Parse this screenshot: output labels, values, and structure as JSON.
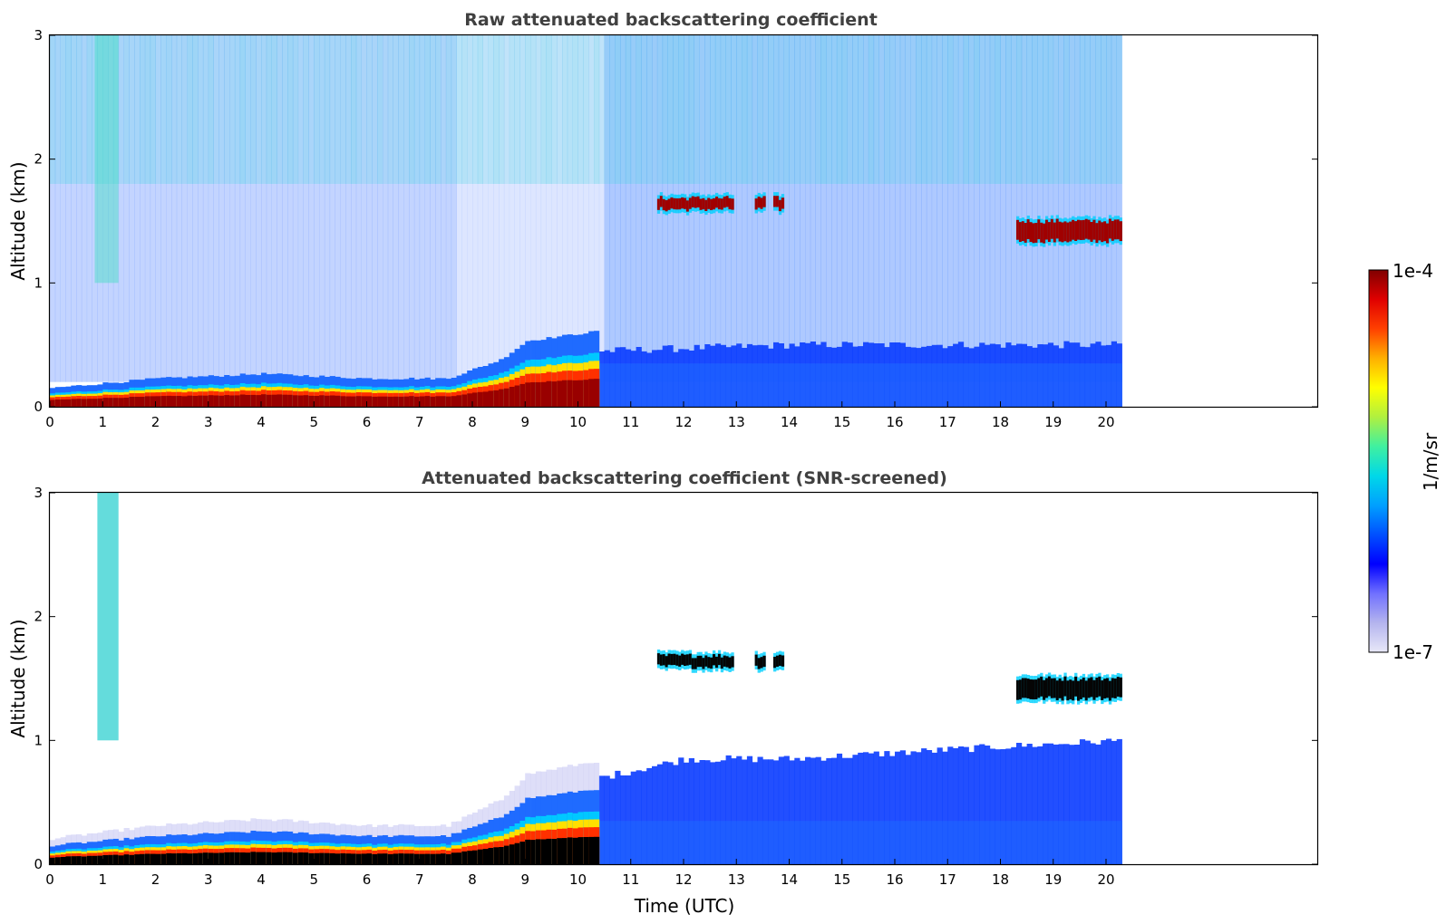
{
  "chart_data": [
    {
      "type": "heatmap",
      "title": "Raw attenuated backscattering coefficient",
      "xlabel": "",
      "ylabel": "Altitude (km)",
      "xlim": [
        0,
        24
      ],
      "ylim": [
        0,
        3
      ],
      "data_extent_x": [
        0,
        20.3
      ],
      "x_ticks": [
        0,
        1,
        2,
        3,
        4,
        5,
        6,
        7,
        8,
        9,
        10,
        11,
        12,
        13,
        14,
        15,
        16,
        17,
        18,
        19,
        20
      ],
      "y_ticks": [
        0,
        1,
        2,
        3
      ],
      "features": {
        "surface_layer": [
          {
            "x": 0,
            "top": 0.08
          },
          {
            "x": 2,
            "top": 0.12
          },
          {
            "x": 4,
            "top": 0.14
          },
          {
            "x": 6,
            "top": 0.12
          },
          {
            "x": 7.5,
            "top": 0.12
          },
          {
            "x": 8.5,
            "top": 0.2
          },
          {
            "x": 9,
            "top": 0.28
          },
          {
            "x": 10.3,
            "top": 0.32
          }
        ],
        "boundary_layer": [
          {
            "x": 10.4,
            "top": 0.45
          },
          {
            "x": 14,
            "top": 0.5
          },
          {
            "x": 18,
            "top": 0.5
          },
          {
            "x": 20.3,
            "top": 0.5
          }
        ],
        "cloud_layers": [
          {
            "x_start": 11.5,
            "x_end": 13.9,
            "altitude": 1.64
          },
          {
            "x_start": 18.3,
            "x_end": 20.3,
            "altitude": 1.42
          }
        ],
        "high_noise_column": {
          "x_start": 0.85,
          "x_end": 1.3,
          "altitude_min": 1.0,
          "altitude_max": 3.0
        }
      }
    },
    {
      "type": "heatmap",
      "title": "Attenuated backscattering coefficient (SNR-screened)",
      "xlabel": "Time (UTC)",
      "ylabel": "Altitude (km)",
      "xlim": [
        0,
        24
      ],
      "ylim": [
        0,
        3
      ],
      "data_extent_x": [
        0,
        20.3
      ],
      "x_ticks": [
        0,
        1,
        2,
        3,
        4,
        5,
        6,
        7,
        8,
        9,
        10,
        11,
        12,
        13,
        14,
        15,
        16,
        17,
        18,
        19,
        20
      ],
      "y_ticks": [
        0,
        1,
        2,
        3
      ],
      "features": {
        "surface_layer": [
          {
            "x": 0,
            "top": 0.08
          },
          {
            "x": 2,
            "top": 0.12
          },
          {
            "x": 4,
            "top": 0.14
          },
          {
            "x": 6,
            "top": 0.12
          },
          {
            "x": 7.5,
            "top": 0.12
          },
          {
            "x": 8.5,
            "top": 0.2
          },
          {
            "x": 9,
            "top": 0.28
          },
          {
            "x": 10.3,
            "top": 0.32
          }
        ],
        "boundary_layer": [
          {
            "x": 10.4,
            "top": 0.7
          },
          {
            "x": 12,
            "top": 0.85
          },
          {
            "x": 14,
            "top": 0.85
          },
          {
            "x": 18,
            "top": 0.95
          },
          {
            "x": 20.3,
            "top": 1.0
          }
        ],
        "cloud_layers": [
          {
            "x_start": 11.5,
            "x_end": 13.9,
            "altitude": 1.64
          },
          {
            "x_start": 18.3,
            "x_end": 20.3,
            "altitude": 1.42
          }
        ],
        "high_noise_column": {
          "x_start": 0.9,
          "x_end": 1.3,
          "altitude_min": 1.0,
          "altitude_max": 3.0
        }
      }
    }
  ],
  "colorbar": {
    "label": "1/m/sr",
    "max_label": "1e-4",
    "min_label": "1e-7",
    "scale": "log",
    "range": [
      1e-07,
      0.0001
    ],
    "colors": [
      "#e8e8f8",
      "#b4b4ee",
      "#7070ff",
      "#0000ff",
      "#0050ff",
      "#00a0ff",
      "#00d8e8",
      "#40f0a0",
      "#b0f040",
      "#ffff00",
      "#ffb000",
      "#ff4000",
      "#e00000",
      "#800000"
    ]
  }
}
